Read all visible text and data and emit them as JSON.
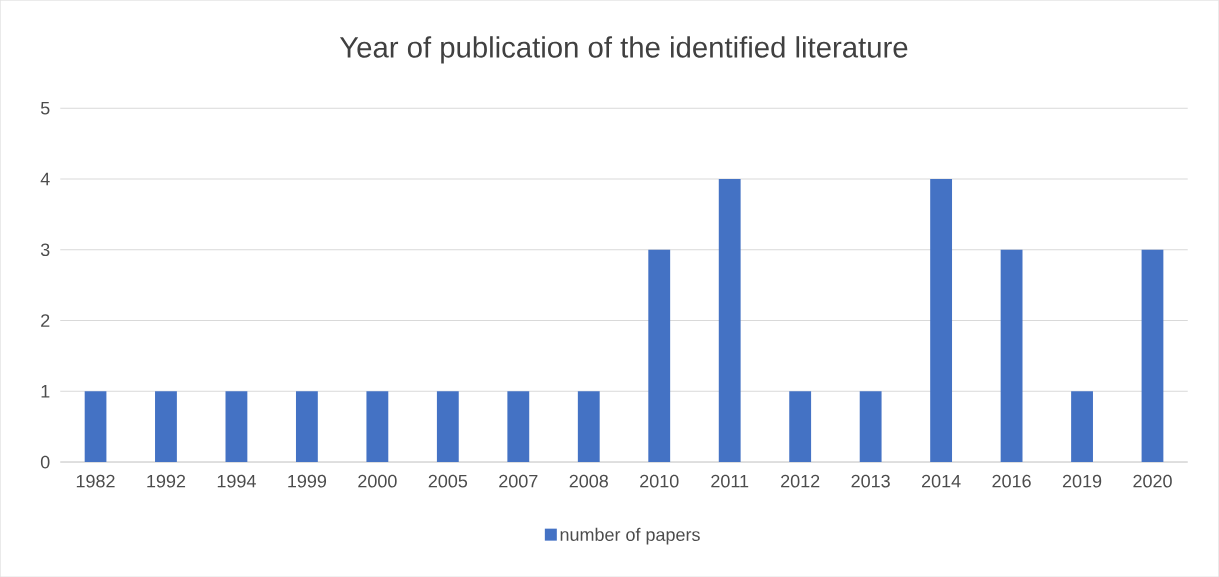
{
  "chart_data": {
    "type": "bar",
    "title": "Year of publication of the identified literature",
    "categories": [
      "1982",
      "1992",
      "1994",
      "1999",
      "2000",
      "2005",
      "2007",
      "2008",
      "2010",
      "2011",
      "2012",
      "2013",
      "2014",
      "2016",
      "2019",
      "2020"
    ],
    "series": [
      {
        "name": "number of papers",
        "color": "#4472c4",
        "values": [
          1,
          1,
          1,
          1,
          1,
          1,
          1,
          1,
          3,
          4,
          1,
          1,
          4,
          3,
          1,
          3
        ]
      }
    ],
    "ylim": [
      0,
      5
    ],
    "yticks": [
      0,
      1,
      2,
      3,
      4,
      5
    ],
    "grid": "y",
    "legend": "bottom"
  }
}
